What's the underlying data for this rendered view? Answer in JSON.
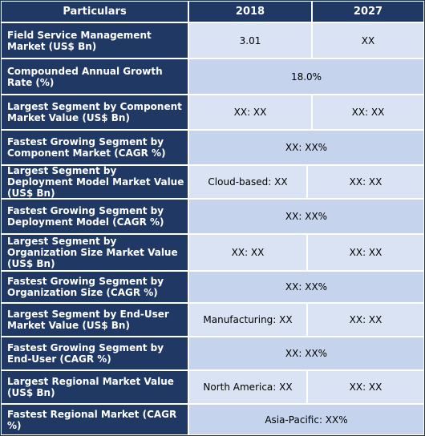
{
  "header": {
    "col1": "Particulars",
    "col2": "2018",
    "col3": "2027"
  },
  "rows": [
    {
      "label": "Field Service Management Market (US$ Bn)",
      "v2018": "3.01",
      "v2027": "XX"
    },
    {
      "label": "Compounded Annual Growth Rate (%)",
      "merged": "18.0%"
    },
    {
      "label": "Largest Segment by Component Market Value (US$ Bn)",
      "v2018": "XX: XX",
      "v2027": "XX: XX"
    },
    {
      "label": "Fastest Growing Segment by Component Market (CAGR %)",
      "merged": "XX: XX%"
    },
    {
      "label": "Largest Segment by Deployment Model Market Value (US$ Bn)",
      "v2018": "Cloud-based: XX",
      "v2027": "XX: XX"
    },
    {
      "label": "Fastest Growing Segment by Deployment Model (CAGR %)",
      "merged": "XX: XX%"
    },
    {
      "label": "Largest Segment by Organization Size Market Value (US$ Bn)",
      "v2018": "XX: XX",
      "v2027": "XX: XX"
    },
    {
      "label": "Fastest Growing Segment by Organization Size (CAGR %)",
      "merged": "XX: XX%"
    },
    {
      "label": "Largest Segment by End-User Market Value (US$ Bn)",
      "v2018": "Manufacturing: XX",
      "v2027": "XX: XX"
    },
    {
      "label": "Fastest Growing Segment by End-User (CAGR %)",
      "merged": "XX: XX%"
    },
    {
      "label": "Largest Regional Market Value (US$ Bn)",
      "v2018": "North America: XX",
      "v2027": "XX: XX"
    },
    {
      "label": "Fastest Regional Market (CAGR %)",
      "merged": "Asia-Pacific: XX%"
    }
  ]
}
